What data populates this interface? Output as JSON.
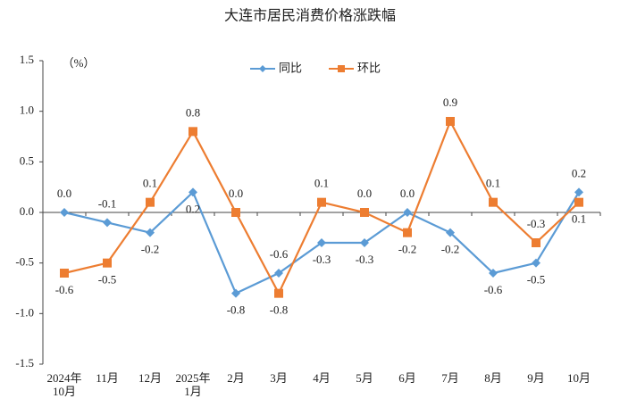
{
  "chart_data": {
    "type": "line",
    "title": "大连市居民消费价格涨跌幅",
    "y_label": "（%）",
    "categories": [
      "2024年\n10月",
      "11月",
      "12月",
      "2025年\n1月",
      "2月",
      "3月",
      "4月",
      "5月",
      "6月",
      "7月",
      "8月",
      "9月",
      "10月"
    ],
    "series": [
      {
        "name": "同比",
        "color": "#5b9bd5",
        "marker": "diamond",
        "values": [
          0,
          -0.1,
          -0.2,
          0.2,
          -0.8,
          -0.6,
          -0.3,
          -0.3,
          0,
          -0.2,
          -0.6,
          -0.5,
          0.2
        ],
        "value_labels": [
          "0.0",
          "-0.1",
          "-0.2",
          "0.2",
          "-0.8",
          "-0.6",
          "-0.3",
          "-0.3",
          "0.0",
          "-0.2",
          "-0.6",
          "-0.5",
          "0.2"
        ]
      },
      {
        "name": "环比",
        "color": "#ed7d31",
        "marker": "square",
        "values": [
          -0.6,
          -0.5,
          0.1,
          0.8,
          0,
          -0.8,
          0.1,
          0,
          -0.2,
          0.9,
          0.1,
          -0.3,
          0.1
        ],
        "value_labels": [
          "-0.6",
          "-0.5",
          "0.1",
          "0.8",
          "0.0",
          "-0.8",
          "0.1",
          "0.0",
          "-0.2",
          "0.9",
          "0.1",
          "-0.3",
          "0.1"
        ]
      }
    ],
    "ylim": [
      -1.5,
      1.5
    ],
    "yticks": [
      -1.5,
      {
        "value": -1,
        "label": "-1.0"
      },
      -0.5,
      {
        "value": 0,
        "label": "0.0"
      },
      0.5,
      {
        "value": 1,
        "label": "1.0"
      },
      1.5
    ],
    "grid": false,
    "legend": "top"
  }
}
